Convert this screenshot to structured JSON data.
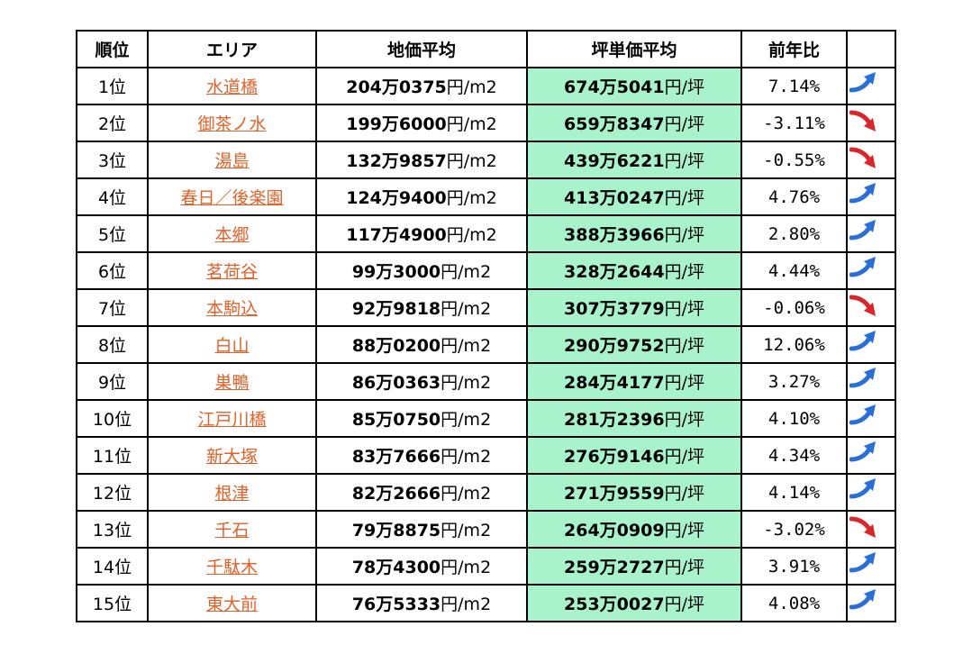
{
  "headers": {
    "rank": "順位",
    "area": "エリア",
    "land_price": "地価平均",
    "tsubo_price": "坪単価平均",
    "yoy": "前年比",
    "trend": ""
  },
  "units": {
    "land": "円/m2",
    "tsubo": "円/坪"
  },
  "colors": {
    "tsubo_bg": "#a8f2cc",
    "land_text": "#5b8a2e",
    "area_link": "#e0622a",
    "up_arrow": "#2a6fd8",
    "down_arrow": "#d8262a"
  },
  "rows": [
    {
      "rank": "1位",
      "area": "水道橋",
      "land": "204万0375",
      "tsubo": "674万5041",
      "yoy": "7.14%",
      "trend": "up-arrow-icon"
    },
    {
      "rank": "2位",
      "area": "御茶ノ水",
      "land": "199万6000",
      "tsubo": "659万8347",
      "yoy": "-3.11%",
      "trend": "down-arrow-icon"
    },
    {
      "rank": "3位",
      "area": "湯島",
      "land": "132万9857",
      "tsubo": "439万6221",
      "yoy": "-0.55%",
      "trend": "down-arrow-icon"
    },
    {
      "rank": "4位",
      "area": "春日／後楽園",
      "land": "124万9400",
      "tsubo": "413万0247",
      "yoy": "4.76%",
      "trend": "up-arrow-icon"
    },
    {
      "rank": "5位",
      "area": "本郷",
      "land": "117万4900",
      "tsubo": "388万3966",
      "yoy": "2.80%",
      "trend": "up-arrow-icon"
    },
    {
      "rank": "6位",
      "area": "茗荷谷",
      "land": "99万3000",
      "tsubo": "328万2644",
      "yoy": "4.44%",
      "trend": "up-arrow-icon"
    },
    {
      "rank": "7位",
      "area": "本駒込",
      "land": "92万9818",
      "tsubo": "307万3779",
      "yoy": "-0.06%",
      "trend": "down-arrow-icon"
    },
    {
      "rank": "8位",
      "area": "白山",
      "land": "88万0200",
      "tsubo": "290万9752",
      "yoy": "12.06%",
      "trend": "up-arrow-icon"
    },
    {
      "rank": "9位",
      "area": "巣鴨",
      "land": "86万0363",
      "tsubo": "284万4177",
      "yoy": "3.27%",
      "trend": "up-arrow-icon"
    },
    {
      "rank": "10位",
      "area": "江戸川橋",
      "land": "85万0750",
      "tsubo": "281万2396",
      "yoy": "4.10%",
      "trend": "up-arrow-icon"
    },
    {
      "rank": "11位",
      "area": "新大塚",
      "land": "83万7666",
      "tsubo": "276万9146",
      "yoy": "4.34%",
      "trend": "up-arrow-icon"
    },
    {
      "rank": "12位",
      "area": "根津",
      "land": "82万2666",
      "tsubo": "271万9559",
      "yoy": "4.14%",
      "trend": "up-arrow-icon"
    },
    {
      "rank": "13位",
      "area": "千石",
      "land": "79万8875",
      "tsubo": "264万0909",
      "yoy": "-3.02%",
      "trend": "down-arrow-icon"
    },
    {
      "rank": "14位",
      "area": "千駄木",
      "land": "78万4300",
      "tsubo": "259万2727",
      "yoy": "3.91%",
      "trend": "up-arrow-icon"
    },
    {
      "rank": "15位",
      "area": "東大前",
      "land": "76万5333",
      "tsubo": "253万0027",
      "yoy": "4.08%",
      "trend": "up-arrow-icon"
    }
  ]
}
